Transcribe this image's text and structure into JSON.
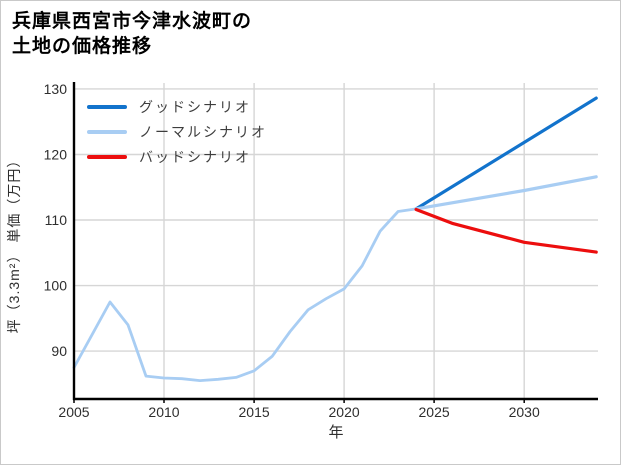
{
  "title": {
    "line1": "兵庫県西宮市今津水波町の",
    "line2": "土地の価格推移"
  },
  "chart_data": {
    "type": "line",
    "title": "兵庫県西宮市今津水波町の土地の価格推移",
    "xlabel": "年",
    "ylabel": "坪（3.3m²） 単価（万円）",
    "x_ticks": [
      2005,
      2010,
      2015,
      2020,
      2025,
      2030
    ],
    "y_ticks": [
      90,
      100,
      110,
      120,
      130
    ],
    "x_range": [
      2005,
      2034.1
    ],
    "y_range": [
      82.7,
      130.9
    ],
    "grid": true,
    "grid_color": "#d6d6d6",
    "axis_color": "#000000",
    "tick_label_color": "#2e2e2e",
    "legend_position": "upper-left",
    "series": [
      {
        "id": "history",
        "in_legend": false,
        "color": "#a8cdf3",
        "width": 2.8,
        "points": [
          [
            2005,
            87.5
          ],
          [
            2006,
            92.5
          ],
          [
            2007,
            97.5
          ],
          [
            2008,
            94
          ],
          [
            2009,
            86.2
          ],
          [
            2010,
            85.9
          ],
          [
            2011,
            85.8
          ],
          [
            2012,
            85.5
          ],
          [
            2013,
            85.7
          ],
          [
            2014,
            86
          ],
          [
            2015,
            87
          ],
          [
            2016,
            89.2
          ],
          [
            2017,
            93
          ],
          [
            2018,
            96.3
          ],
          [
            2019,
            98
          ],
          [
            2020,
            99.5
          ],
          [
            2021,
            103
          ],
          [
            2022,
            108.3
          ],
          [
            2023,
            111.3
          ],
          [
            2024,
            111.7
          ]
        ]
      },
      {
        "id": "good-scenario",
        "name": "グッドシナリオ",
        "in_legend": true,
        "color": "#1273cc",
        "width": 3.2,
        "points": [
          [
            2024,
            111.7
          ],
          [
            2034,
            128.6
          ]
        ]
      },
      {
        "id": "normal-scenario",
        "name": "ノーマルシナリオ",
        "in_legend": true,
        "color": "#a8cdf3",
        "width": 3.2,
        "points": [
          [
            2024,
            111.7
          ],
          [
            2030,
            114.5
          ],
          [
            2034,
            116.6
          ]
        ]
      },
      {
        "id": "bad-scenario",
        "name": "バッドシナリオ",
        "in_legend": true,
        "color": "#ec0e0e",
        "width": 3.2,
        "points": [
          [
            2024,
            111.6
          ],
          [
            2026,
            109.5
          ],
          [
            2030,
            106.6
          ],
          [
            2034,
            105.1
          ]
        ]
      }
    ]
  }
}
